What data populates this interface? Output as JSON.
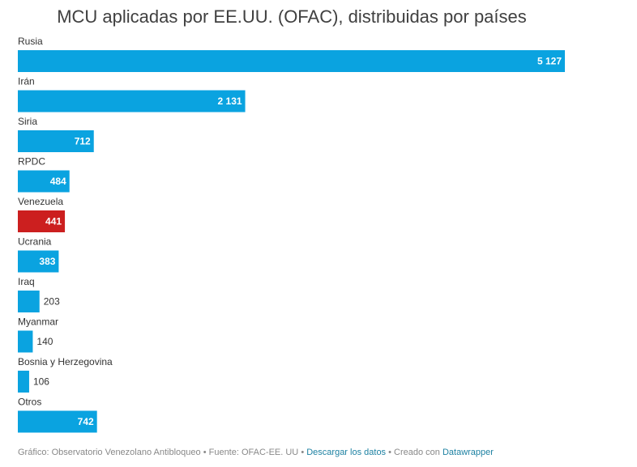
{
  "chart_data": {
    "type": "bar",
    "orientation": "horizontal",
    "title": "MCU aplicadas por EE.UU. (OFAC), distribuidas por países",
    "categories": [
      "Rusia",
      "Irán",
      "Siria",
      "RPDC",
      "Venezuela",
      "Ucrania",
      "Iraq",
      "Myanmar",
      "Bosnia y Herzegovina",
      "Otros"
    ],
    "values": [
      5127,
      2131,
      712,
      484,
      441,
      383,
      203,
      140,
      106,
      742
    ],
    "value_labels": [
      "5 127",
      "2 131",
      "712",
      "484",
      "441",
      "383",
      "203",
      "140",
      "106",
      "742"
    ],
    "highlight_category": "Venezuela",
    "xlim": [
      0,
      5127
    ],
    "grid": false,
    "legend": "none",
    "colors": {
      "bar": "#0aa3e0",
      "highlight": "#cc1f1f"
    }
  },
  "footer": {
    "source": "Gráfico: Observatorio Venezolano Antibloqueo • Fuente: OFAC-EE. UU",
    "separator1": " • ",
    "download_link": "Descargar los datos",
    "separator2": " • Creado con ",
    "datawrapper_link": "Datawrapper"
  }
}
